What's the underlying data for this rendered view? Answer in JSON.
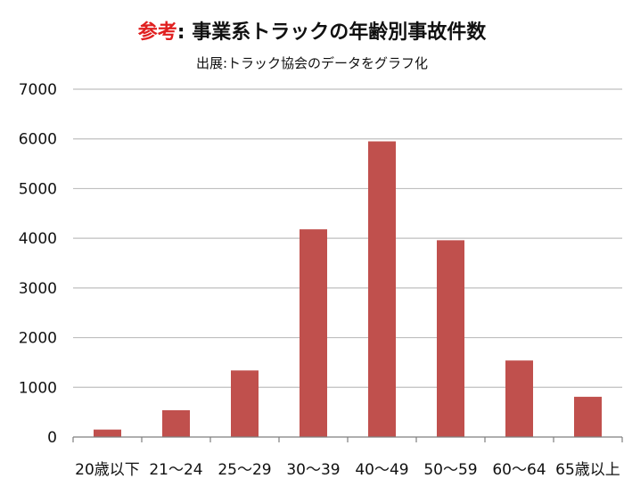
{
  "chart_data": {
    "type": "bar",
    "title_prefix": "参考",
    "title_separator": ":",
    "title": "事業系トラックの年齢別事故件数",
    "subtitle": "出展:トラック協会のデータをグラフ化",
    "categories": [
      "20歳以下",
      "21～24",
      "25～29",
      "30～39",
      "40～49",
      "50～59",
      "60～64",
      "65歳以上"
    ],
    "values": [
      150,
      540,
      1340,
      4180,
      5950,
      3960,
      1540,
      810
    ],
    "ylim": [
      0,
      7000
    ],
    "yticks": [
      0,
      1000,
      2000,
      3000,
      4000,
      5000,
      6000,
      7000
    ],
    "grid": true,
    "legend": "none",
    "colors": {
      "bar": "#c0504d",
      "grid": "#bfbfbf",
      "axis": "#7f7f7f",
      "title_prefix": "#e02020"
    }
  }
}
